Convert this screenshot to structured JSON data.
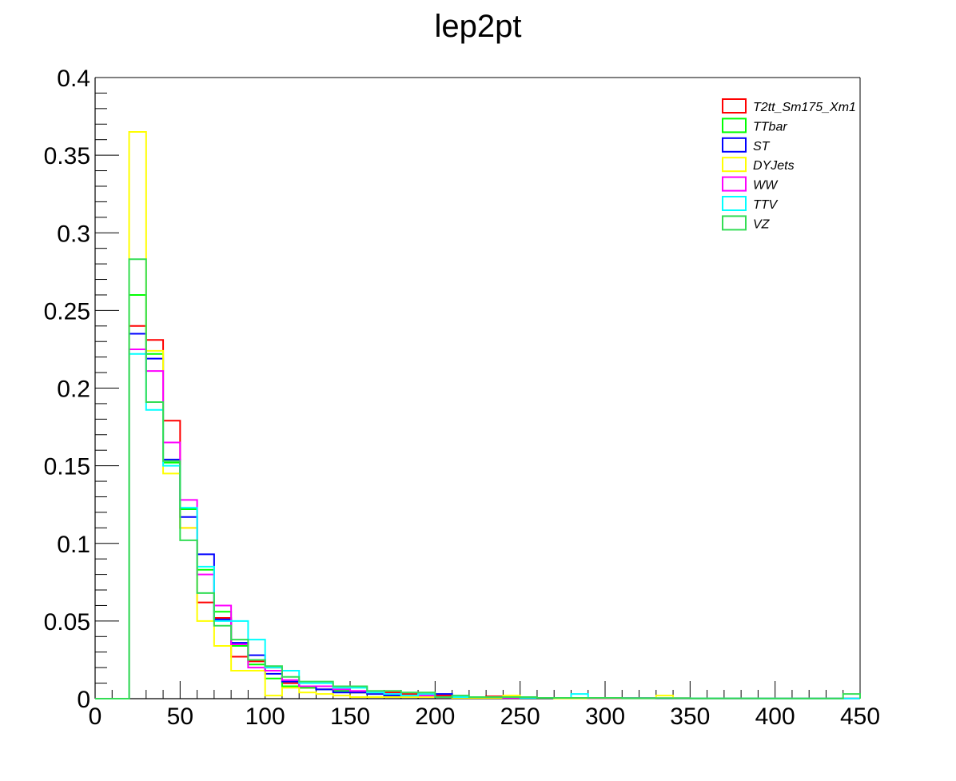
{
  "chart_data": {
    "type": "histogram",
    "title": "lep2pt",
    "xlabel": "",
    "ylabel": "",
    "xlim": [
      0,
      450
    ],
    "ylim": [
      0,
      0.4
    ],
    "grid": false,
    "legend_position": "top-right",
    "x_ticks": [
      0,
      50,
      100,
      150,
      200,
      250,
      300,
      350,
      400,
      450
    ],
    "x_tick_labels": [
      "0",
      "50",
      "100",
      "150",
      "200",
      "250",
      "300",
      "350",
      "400",
      "450"
    ],
    "y_ticks": [
      0,
      0.05,
      0.1,
      0.15,
      0.2,
      0.25,
      0.3,
      0.35,
      0.4
    ],
    "y_tick_labels": [
      "0",
      "0.05",
      "0.1",
      "0.15",
      "0.2",
      "0.25",
      "0.3",
      "0.35",
      "0.4"
    ],
    "bin_edges": [
      0,
      10,
      20,
      30,
      40,
      50,
      60,
      70,
      80,
      90,
      100,
      110,
      120,
      130,
      140,
      150,
      160,
      170,
      180,
      190,
      200,
      210,
      220,
      230,
      240,
      250,
      260,
      270,
      280,
      290,
      300,
      310,
      320,
      330,
      340,
      350,
      360,
      370,
      380,
      390,
      400,
      410,
      420,
      430,
      440,
      450
    ],
    "series": [
      {
        "name": "T2tt_Sm175_Xm1",
        "color": "#ff0000",
        "values": [
          0,
          0,
          0.24,
          0.231,
          0.179,
          0.11,
          0.062,
          0.052,
          0.027,
          0.024,
          0.02,
          0.01,
          0.007,
          0.006,
          0.006,
          0.004,
          0.004,
          0.004,
          0.003,
          0.003,
          0.002,
          0.001,
          0.001,
          0.0015,
          0.001,
          0.0005,
          0.0005,
          0.0005,
          0.0005,
          0.0004,
          0.0004,
          0.0003,
          0.0003,
          0.0003,
          0.0003,
          0.0002,
          0.0002,
          0.0002,
          0.0002,
          0.0001,
          0.0001,
          0.0001,
          0.0001,
          0.0001,
          0.0001
        ]
      },
      {
        "name": "TTbar",
        "color": "#00ff00",
        "values": [
          0,
          0,
          0.26,
          0.222,
          0.152,
          0.122,
          0.083,
          0.056,
          0.034,
          0.022,
          0.013,
          0.008,
          0.007,
          0.006,
          0.005,
          0.004,
          0.003,
          0.002,
          0.002,
          0.002,
          0.001,
          0.001,
          0.001,
          0.001,
          0.0005,
          0.0005,
          0.0005,
          0.0005,
          0.0005,
          0.0003,
          0.0003,
          0.0003,
          0.0003,
          0.0002,
          0.0002,
          0.0002,
          0.0002,
          0.0001,
          0.0001,
          0.0001,
          0.0001,
          0.0001,
          0.0001,
          0.0001,
          0.0001
        ]
      },
      {
        "name": "ST",
        "color": "#0000ff",
        "values": [
          0,
          0,
          0.235,
          0.219,
          0.154,
          0.117,
          0.093,
          0.051,
          0.036,
          0.028,
          0.016,
          0.011,
          0.008,
          0.006,
          0.004,
          0.004,
          0.003,
          0.002,
          0.001,
          0.001,
          0.003,
          0.001,
          0.001,
          0.001,
          0.0005,
          0.0005,
          0.0005,
          0.0005,
          0.0005,
          0.0003,
          0.0003,
          0.0003,
          0.0003,
          0.0002,
          0.0002,
          0.0002,
          0.0002,
          0.0001,
          0.0001,
          0.0001,
          0.0001,
          0.0001,
          0.0001,
          0.0001,
          0.0001
        ]
      },
      {
        "name": "DYJets",
        "color": "#ffff00",
        "values": [
          0,
          0,
          0.365,
          0.224,
          0.145,
          0.11,
          0.05,
          0.034,
          0.018,
          0.018,
          0.002,
          0.007,
          0.004,
          0.003,
          0.002,
          0.001,
          0.001,
          0.001,
          0.001,
          0.001,
          0.001,
          0.0005,
          0.0005,
          0.0005,
          0.002,
          0.0005,
          0.0005,
          0.0002,
          0.0002,
          0.0002,
          0.0002,
          0.0002,
          0.0002,
          0.002,
          0.0002,
          0.0002,
          0.0002,
          0.0001,
          0.0001,
          0.0001,
          0.0001,
          0.0001,
          0.0001,
          0.0001,
          0.0001
        ]
      },
      {
        "name": "WW",
        "color": "#ff00ff",
        "values": [
          0,
          0,
          0.225,
          0.211,
          0.165,
          0.128,
          0.08,
          0.06,
          0.035,
          0.02,
          0.018,
          0.012,
          0.008,
          0.008,
          0.006,
          0.005,
          0.004,
          0.003,
          0.002,
          0.002,
          0.001,
          0.001,
          0.001,
          0.001,
          0.0005,
          0.0005,
          0.0005,
          0.0005,
          0.0005,
          0.0003,
          0.0003,
          0.0003,
          0.0003,
          0.0002,
          0.0002,
          0.0002,
          0.0002,
          0.0001,
          0.0001,
          0.0001,
          0.0001,
          0.0001,
          0.0001,
          0.0001,
          0.0001
        ]
      },
      {
        "name": "TTV",
        "color": "#00ffff",
        "values": [
          0,
          0,
          0.222,
          0.186,
          0.15,
          0.123,
          0.085,
          0.05,
          0.05,
          0.038,
          0.02,
          0.018,
          0.01,
          0.01,
          0.007,
          0.007,
          0.004,
          0.003,
          0.002,
          0.003,
          0.001,
          0.001,
          0.001,
          0.001,
          0.001,
          0.0005,
          0.0005,
          0.0005,
          0.003,
          0.0005,
          0.0005,
          0.0003,
          0.0003,
          0.0003,
          0.0003,
          0.0002,
          0.0002,
          0.0002,
          0.0002,
          0.0001,
          0.0001,
          0.0001,
          0.0001,
          0.0001,
          0.0001
        ]
      },
      {
        "name": "VZ",
        "color": "#33dd55",
        "values": [
          0,
          0,
          0.283,
          0.191,
          0.153,
          0.102,
          0.068,
          0.047,
          0.038,
          0.025,
          0.021,
          0.014,
          0.011,
          0.011,
          0.008,
          0.008,
          0.005,
          0.005,
          0.004,
          0.004,
          0.001,
          0.002,
          0.001,
          0.001,
          0.001,
          0.001,
          0.0005,
          0.0005,
          0.0005,
          0.0005,
          0.0005,
          0.0003,
          0.0003,
          0.0003,
          0.0003,
          0.0002,
          0.0002,
          0.0002,
          0.0002,
          0.0001,
          0.0001,
          0.0001,
          0.0001,
          0.0001,
          0.003
        ]
      }
    ]
  }
}
